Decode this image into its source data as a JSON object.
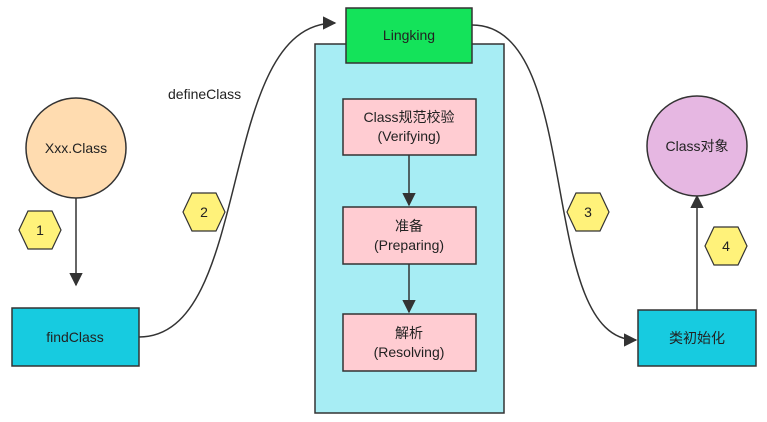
{
  "nodes": {
    "xxx_class": {
      "label": "Xxx.Class",
      "fill": "#ffdcb0"
    },
    "find_class": {
      "label": "findClass",
      "fill": "#17cbe0"
    },
    "lingking": {
      "label": "Lingking",
      "fill": "#14e35a"
    },
    "verifying": {
      "line1": "Class规范校验",
      "line2": "(Verifying)",
      "fill": "#ffccd2"
    },
    "preparing": {
      "line1": "准备",
      "line2": "(Preparing)",
      "fill": "#ffccd2"
    },
    "resolving": {
      "line1": "解析",
      "line2": "(Resolving)",
      "fill": "#ffccd2"
    },
    "class_init": {
      "label": "类初始化",
      "fill": "#17cbe0"
    },
    "class_object": {
      "label": "Class对象",
      "fill": "#e6b7e2"
    }
  },
  "container": {
    "fill": "#a7edf4"
  },
  "steps": {
    "s1": {
      "label": "1",
      "fill": "#fff27a"
    },
    "s2": {
      "label": "2",
      "fill": "#fff27a"
    },
    "s3": {
      "label": "3",
      "fill": "#fff27a"
    },
    "s4": {
      "label": "4",
      "fill": "#fff27a"
    }
  },
  "edge_labels": {
    "define_class": "defineClass"
  },
  "colors": {
    "stroke": "#333333"
  }
}
